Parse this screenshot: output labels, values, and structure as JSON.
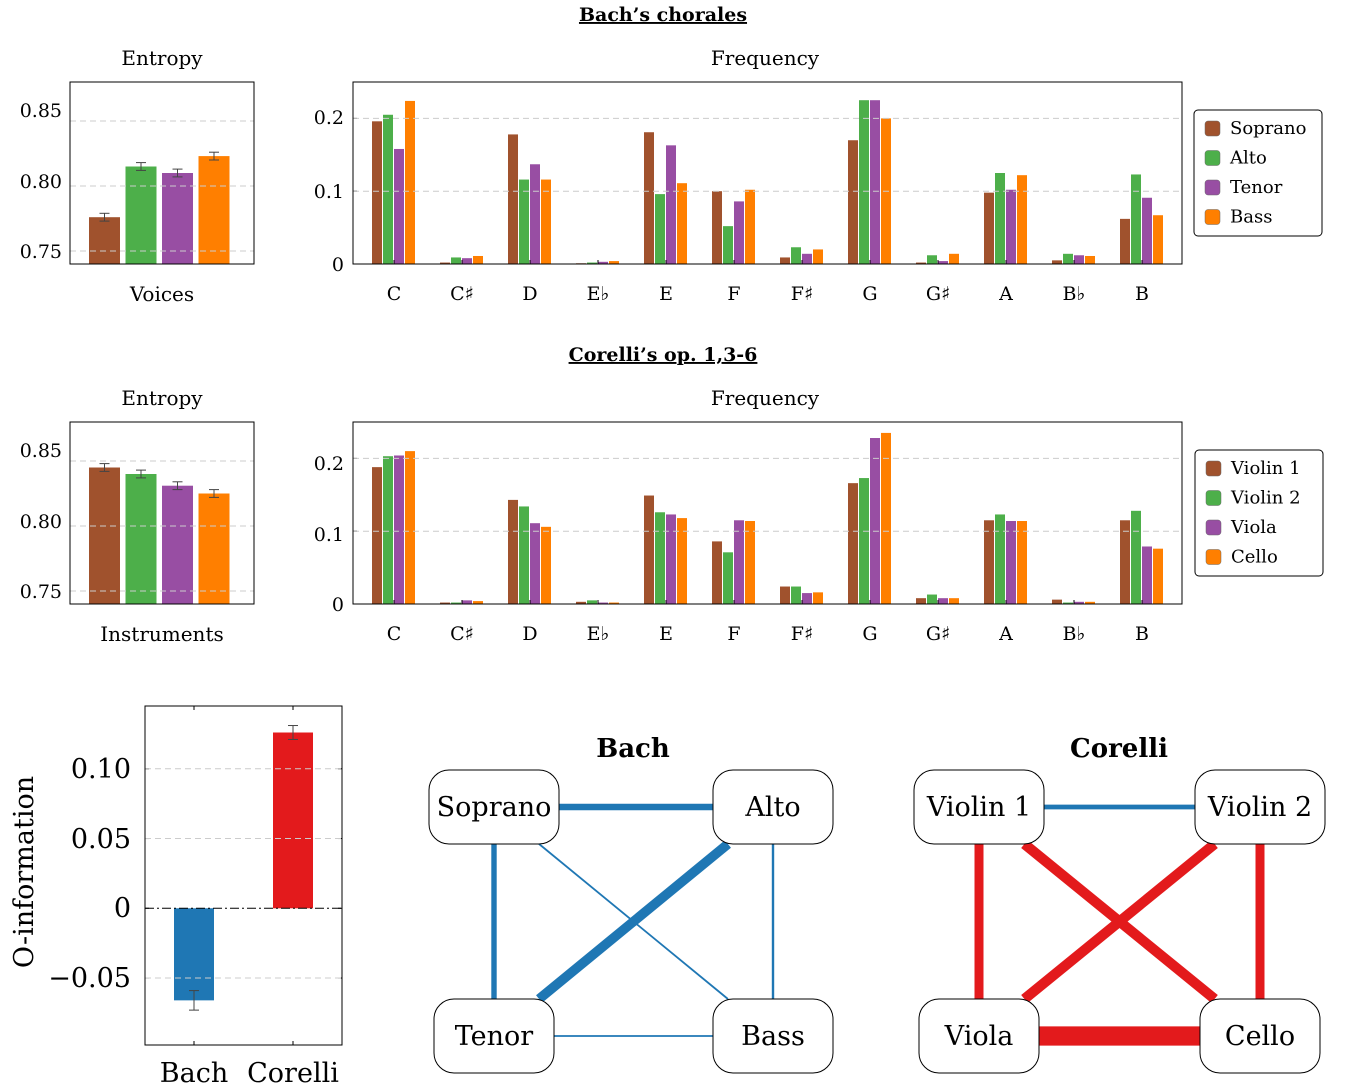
{
  "sections": [
    {
      "title": "Bach’s chorales",
      "entropy": {
        "title": "Entropy",
        "xlabel": "Voices",
        "ytick_labels": [
          "0.75",
          "0.80",
          "0.85"
        ]
      },
      "frequency": {
        "title": "Frequency",
        "ytick_labels": [
          "0",
          "0.1",
          "0.2"
        ]
      }
    },
    {
      "title": "Corelli’s op. 1,3-6",
      "entropy": {
        "title": "Entropy",
        "xlabel": "Instruments",
        "ytick_labels": [
          "0.75",
          "0.80",
          "0.85"
        ]
      },
      "frequency": {
        "title": "Frequency",
        "ytick_labels": [
          "0",
          "0.1",
          "0.2"
        ]
      }
    }
  ],
  "oinfo": {
    "ylabel": "O-information",
    "ytick_labels": [
      "−0.05",
      "0",
      "0.05",
      "0.10"
    ]
  },
  "networks": [
    {
      "title": "Bach",
      "nodes": [
        "Soprano",
        "Alto",
        "Tenor",
        "Bass"
      ],
      "edges": [
        {
          "a": 0,
          "b": 1,
          "strength": 0.55,
          "sign": "negative"
        },
        {
          "a": 0,
          "b": 2,
          "strength": 0.45,
          "sign": "negative"
        },
        {
          "a": 0,
          "b": 3,
          "strength": 0.15,
          "sign": "negative"
        },
        {
          "a": 1,
          "b": 2,
          "strength": 0.8,
          "sign": "negative"
        },
        {
          "a": 1,
          "b": 3,
          "strength": 0.2,
          "sign": "negative"
        },
        {
          "a": 2,
          "b": 3,
          "strength": 0.15,
          "sign": "negative"
        }
      ]
    },
    {
      "title": "Corelli",
      "nodes": [
        "Violin 1",
        "Violin 2",
        "Viola",
        "Cello"
      ],
      "edges": [
        {
          "a": 0,
          "b": 1,
          "strength": 0.4,
          "sign": "negative"
        },
        {
          "a": 0,
          "b": 2,
          "strength": 0.75,
          "sign": "positive"
        },
        {
          "a": 0,
          "b": 3,
          "strength": 0.85,
          "sign": "positive"
        },
        {
          "a": 1,
          "b": 2,
          "strength": 0.85,
          "sign": "positive"
        },
        {
          "a": 1,
          "b": 3,
          "strength": 0.75,
          "sign": "positive"
        },
        {
          "a": 2,
          "b": 3,
          "strength": 1.6,
          "sign": "positive"
        }
      ]
    }
  ],
  "colors": {
    "brown": "#A0522D",
    "green": "#4DAF4A",
    "purple": "#984EA3",
    "orange": "#FF7F00",
    "blue": "#1F77B4",
    "red": "#E31A1C"
  },
  "chart_data": [
    {
      "id": "bach-entropy",
      "type": "bar",
      "title": "Entropy",
      "xlabel": "Voices",
      "categories": [
        "Soprano",
        "Alto",
        "Tenor",
        "Bass"
      ],
      "values": [
        0.776,
        0.815,
        0.81,
        0.823
      ],
      "errors": [
        0.003,
        0.003,
        0.003,
        0.003
      ],
      "ylim": [
        0.74,
        0.88
      ],
      "yticks": [
        0.75,
        0.8,
        0.85
      ],
      "grid": true
    },
    {
      "id": "bach-frequency",
      "type": "bar",
      "title": "Frequency",
      "categories": [
        "C",
        "C♯",
        "D",
        "E♭",
        "E",
        "F",
        "F♯",
        "G",
        "G♯",
        "A",
        "B♭",
        "B"
      ],
      "series": [
        {
          "name": "Soprano",
          "values": [
            0.196,
            0.002,
            0.178,
            0.001,
            0.181,
            0.1,
            0.009,
            0.17,
            0.002,
            0.098,
            0.005,
            0.062
          ]
        },
        {
          "name": "Alto",
          "values": [
            0.205,
            0.009,
            0.116,
            0.002,
            0.096,
            0.052,
            0.023,
            0.225,
            0.012,
            0.125,
            0.014,
            0.123
          ]
        },
        {
          "name": "Tenor",
          "values": [
            0.158,
            0.008,
            0.137,
            0.003,
            0.163,
            0.086,
            0.014,
            0.225,
            0.004,
            0.102,
            0.012,
            0.091
          ]
        },
        {
          "name": "Bass",
          "values": [
            0.224,
            0.011,
            0.116,
            0.004,
            0.111,
            0.102,
            0.02,
            0.2,
            0.014,
            0.122,
            0.011,
            0.067
          ]
        }
      ],
      "ylim": [
        0,
        0.25
      ],
      "yticks": [
        0,
        0.1,
        0.2
      ],
      "legend": "right",
      "grid": true
    },
    {
      "id": "corelli-entropy",
      "type": "bar",
      "title": "Entropy",
      "xlabel": "Instruments",
      "categories": [
        "Violin 1",
        "Violin 2",
        "Viola",
        "Cello"
      ],
      "values": [
        0.845,
        0.84,
        0.831,
        0.825
      ],
      "errors": [
        0.003,
        0.003,
        0.003,
        0.003
      ],
      "ylim": [
        0.74,
        0.88
      ],
      "yticks": [
        0.75,
        0.8,
        0.85
      ],
      "grid": true
    },
    {
      "id": "corelli-frequency",
      "type": "bar",
      "title": "Frequency",
      "categories": [
        "C",
        "C♯",
        "D",
        "E♭",
        "E",
        "F",
        "F♯",
        "G",
        "G♯",
        "A",
        "B♭",
        "B"
      ],
      "series": [
        {
          "name": "Violin 1",
          "values": [
            0.188,
            0.002,
            0.143,
            0.003,
            0.149,
            0.086,
            0.024,
            0.166,
            0.008,
            0.115,
            0.006,
            0.115
          ]
        },
        {
          "name": "Violin 2",
          "values": [
            0.203,
            0.002,
            0.134,
            0.005,
            0.126,
            0.071,
            0.024,
            0.173,
            0.013,
            0.123,
            0.002,
            0.128
          ]
        },
        {
          "name": "Viola",
          "values": [
            0.204,
            0.005,
            0.111,
            0.002,
            0.123,
            0.115,
            0.015,
            0.228,
            0.008,
            0.114,
            0.003,
            0.079
          ]
        },
        {
          "name": "Cello",
          "values": [
            0.21,
            0.004,
            0.106,
            0.002,
            0.118,
            0.114,
            0.016,
            0.235,
            0.008,
            0.114,
            0.003,
            0.076
          ]
        }
      ],
      "ylim": [
        0,
        0.25
      ],
      "yticks": [
        0,
        0.1,
        0.2
      ],
      "legend": "right",
      "grid": true
    },
    {
      "id": "oinformation",
      "type": "bar",
      "ylabel": "O-information",
      "categories": [
        "Bach",
        "Corelli"
      ],
      "values": [
        -0.066,
        0.126
      ],
      "errors": [
        0.007,
        0.005
      ],
      "ylim": [
        -0.098,
        0.145
      ],
      "yticks": [
        -0.05,
        0,
        0.05,
        0.1
      ],
      "grid": true
    }
  ]
}
